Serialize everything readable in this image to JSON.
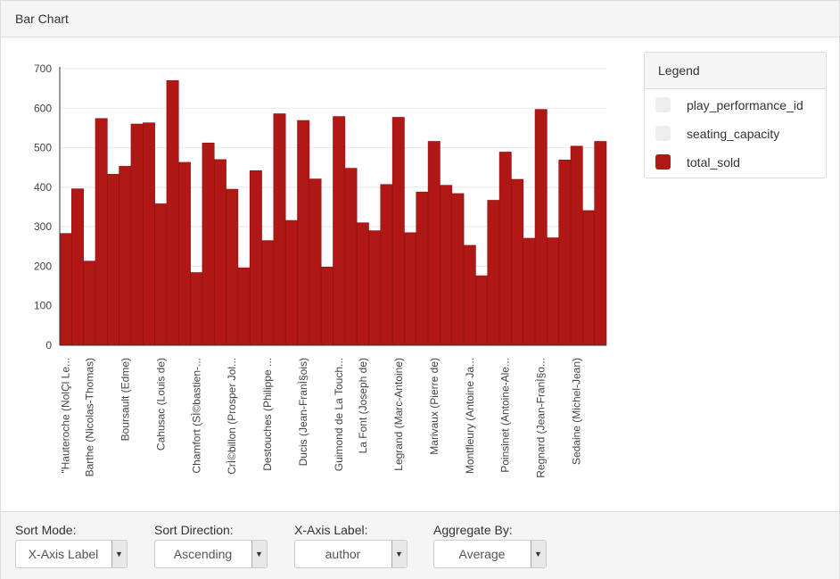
{
  "header": {
    "title": "Bar Chart"
  },
  "legend": {
    "title": "Legend",
    "items": [
      {
        "label": "play_performance_id",
        "color": "#eeeeee"
      },
      {
        "label": "seating_capacity",
        "color": "#eeeeee"
      },
      {
        "label": "total_sold",
        "color": "#b01815"
      }
    ]
  },
  "controls": {
    "sort_mode": {
      "label": "Sort Mode:",
      "value": "X-Axis Label"
    },
    "sort_direction": {
      "label": "Sort Direction:",
      "value": "Ascending"
    },
    "x_axis_label": {
      "label": "X-Axis Label:",
      "value": "author"
    },
    "aggregate_by": {
      "label": "Aggregate By:",
      "value": "Average"
    }
  },
  "chart_data": {
    "type": "bar",
    "title": "",
    "xlabel": "",
    "ylabel": "",
    "ylim": [
      0,
      700
    ],
    "yticks": [
      0,
      100,
      200,
      300,
      400,
      500,
      600,
      700
    ],
    "grid": true,
    "legend_position": "right",
    "bar_color": "#b01815",
    "tick_labels": [
      "\"Hauteroche (NolÇl Le...",
      "Barthe (Nicolas-Thomas)",
      "Boursault (Edme)",
      "Cahusac (Louis de)",
      "Chamfort (SÌ©bastien-...",
      "CrÌ©billon (Prosper Jol...",
      "Destouches (Philippe ...",
      "Ducis (Jean-FranÌ§ois)",
      "Guimond de La Touch...",
      "La Font (Joseph de)",
      "Legrand (Marc-Antoine)",
      "Marivaux (Pierre de)",
      "Montfleury (Antoine Ja...",
      "Poinsinet (Antoine-Ale...",
      "Regnard (Jean-FranÌ§o...",
      "Sedaine (Michel-Jean)"
    ],
    "series": [
      {
        "name": "total_sold",
        "values": [
          283,
          396,
          213,
          574,
          433,
          453,
          560,
          563,
          358,
          670,
          463,
          184,
          512,
          470,
          395,
          196,
          442,
          265,
          586,
          316,
          569,
          421,
          198,
          579,
          448,
          310,
          290,
          407,
          577,
          285,
          388,
          516,
          405,
          384,
          253,
          176,
          367,
          489,
          420,
          271,
          597,
          272,
          469,
          504,
          341,
          516
        ]
      }
    ]
  }
}
